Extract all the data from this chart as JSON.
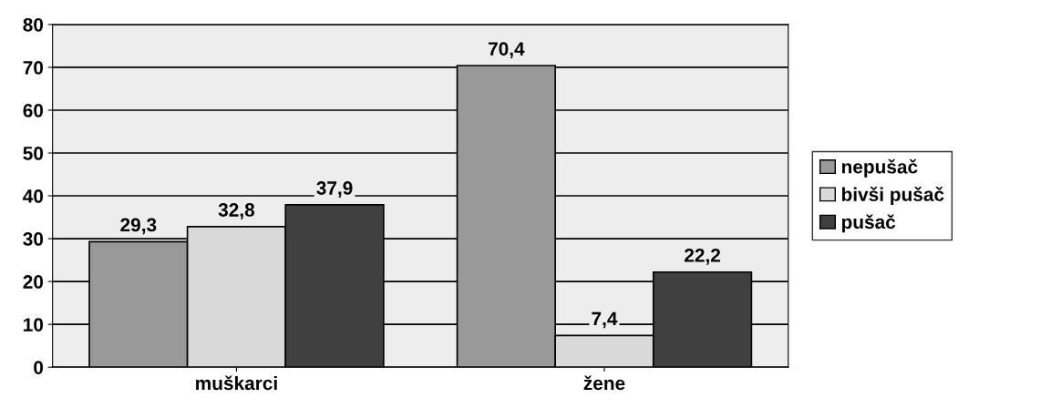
{
  "chart_data": {
    "type": "bar",
    "categories": [
      "muškarci",
      "žene"
    ],
    "series": [
      {
        "name": "nepušač",
        "color": "#999999",
        "values": [
          29.3,
          70.4
        ],
        "value_labels": [
          "29,3",
          "70,4"
        ]
      },
      {
        "name": "bivši pušač",
        "color": "#d9d9d9",
        "values": [
          32.8,
          7.4
        ],
        "value_labels": [
          "32,8",
          "7,4"
        ]
      },
      {
        "name": "pušač",
        "color": "#404040",
        "values": [
          37.9,
          22.2
        ],
        "value_labels": [
          "37,9",
          "22,2"
        ]
      }
    ],
    "ylim": [
      0,
      80
    ],
    "yticks": [
      0,
      10,
      20,
      30,
      40,
      50,
      60,
      70,
      80
    ],
    "grid": "y",
    "legend": "right"
  }
}
